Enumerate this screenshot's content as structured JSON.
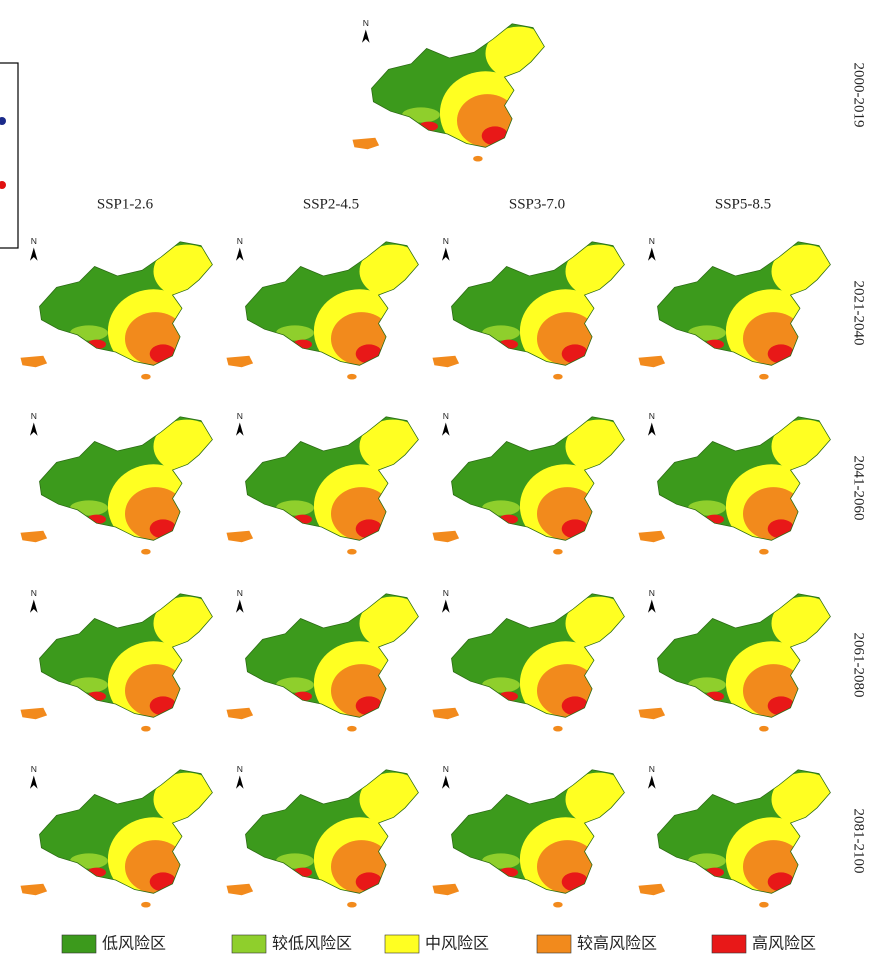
{
  "baseline_period": "2000-2019",
  "scenarios": [
    "SSP1-2.6",
    "SSP2-4.5",
    "SSP3-7.0",
    "SSP5-8.5"
  ],
  "periods": [
    "2021-2040",
    "2041-2060",
    "2061-2080",
    "2081-2100"
  ],
  "north_label": "N",
  "legend": [
    {
      "label": "低风险区",
      "color": "#3c9a1c"
    },
    {
      "label": "较低风险区",
      "color": "#8fcf2c"
    },
    {
      "label": "中风险区",
      "color": "#ffff22"
    },
    {
      "label": "较高风险区",
      "color": "#f28a1c"
    },
    {
      "label": "高风险区",
      "color": "#e81818"
    }
  ]
}
